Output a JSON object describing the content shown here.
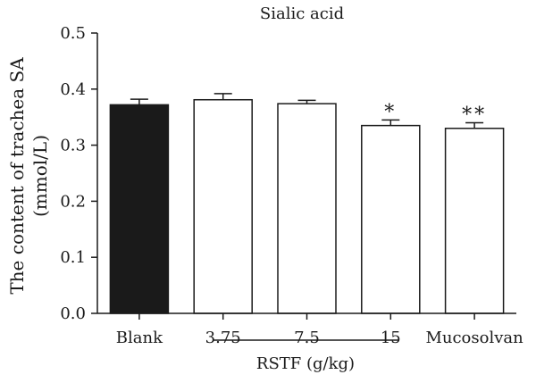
{
  "chart_data": {
    "type": "bar",
    "title": "Sialic acid",
    "ylabel_line1": "The content of trachea SA",
    "ylabel_line2": "(mmol/L)",
    "xgroup_label": "RSTF (g/kg)",
    "categories": [
      "Blank",
      "3.75",
      "7.5",
      "15",
      "Mucosolvan"
    ],
    "values": [
      0.372,
      0.381,
      0.374,
      0.335,
      0.33
    ],
    "errors": [
      0.01,
      0.011,
      0.006,
      0.01,
      0.01
    ],
    "significance": [
      "",
      "",
      "",
      "*",
      "**"
    ],
    "fills": [
      "#1a1a1a",
      "#ffffff",
      "#ffffff",
      "#ffffff",
      "#ffffff"
    ],
    "ylim": [
      0,
      0.5
    ],
    "yticks": [
      "0.0",
      "0.1",
      "0.2",
      "0.3",
      "0.4",
      "0.5"
    ],
    "grid": false,
    "legend": "none"
  }
}
